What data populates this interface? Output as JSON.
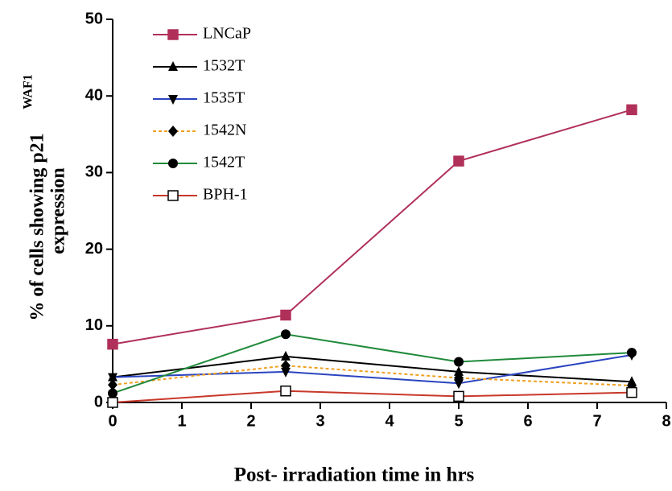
{
  "chart_data": {
    "type": "line",
    "xlabel": "Post- irradiation time in hrs",
    "ylabel": "% of cells showing p21",
    "ylabel_sup": "WAF1",
    "ylabel_line2": "expression",
    "x": [
      0,
      2.5,
      5,
      7.5
    ],
    "series": [
      {
        "name": "LNCaP",
        "color": "#b0305a",
        "marker": "square",
        "linestyle": "solid",
        "values": [
          7.6,
          11.4,
          31.5,
          38.2
        ]
      },
      {
        "name": "1532T",
        "color": "#000000",
        "marker": "triangle-up",
        "linestyle": "solid",
        "values": [
          3.3,
          6.0,
          4.0,
          2.7
        ]
      },
      {
        "name": "1535T",
        "color": "#2a44c0",
        "marker": "triangle-down",
        "linestyle": "solid",
        "values": [
          3.3,
          4.0,
          2.5,
          6.2
        ]
      },
      {
        "name": "1542N",
        "color": "#f0a020",
        "marker": "diamond",
        "linestyle": "dashed",
        "values": [
          2.3,
          4.8,
          3.2,
          2.2
        ]
      },
      {
        "name": "1542T",
        "color": "#208a3a",
        "marker": "circle",
        "linestyle": "solid",
        "values": [
          1.2,
          8.9,
          5.3,
          6.5
        ]
      },
      {
        "name": "BPH-1",
        "color": "#c8382a",
        "marker": "open-square",
        "linestyle": "solid",
        "values": [
          0,
          1.5,
          0.8,
          1.3
        ]
      }
    ],
    "xlim": [
      0,
      8
    ],
    "xticks": [
      0,
      1,
      2,
      3,
      4,
      5,
      6,
      7,
      8
    ],
    "ylim": [
      0,
      50
    ],
    "yticks": [
      0,
      10,
      20,
      30,
      40,
      50
    ],
    "legend": "upper left",
    "grid": false
  }
}
